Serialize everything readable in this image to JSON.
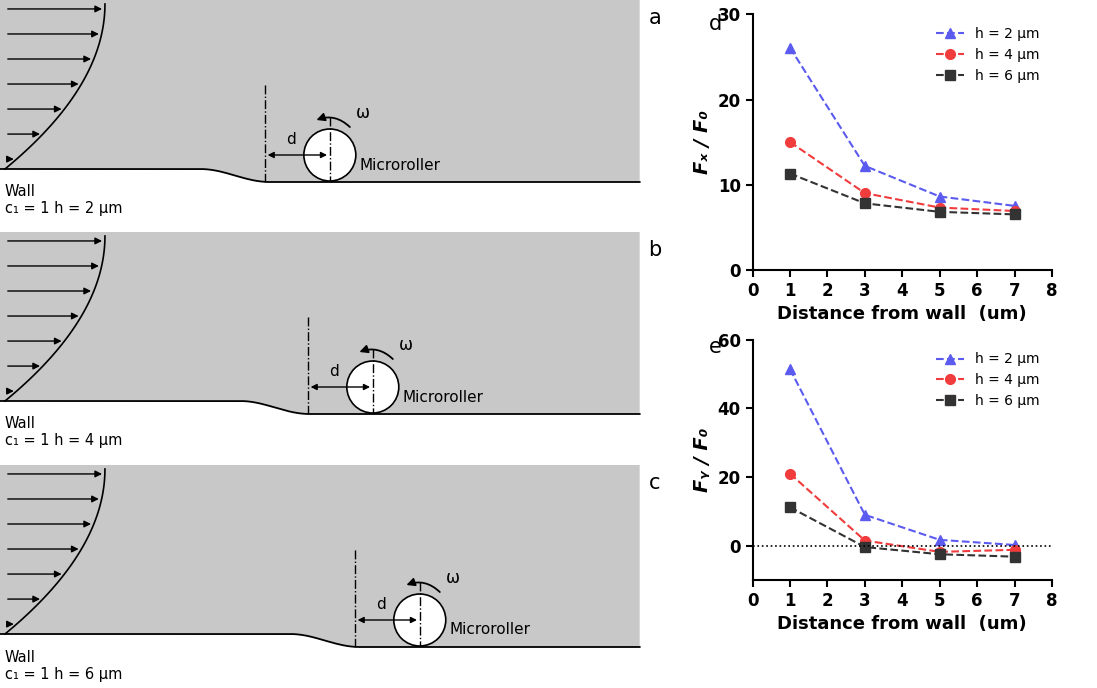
{
  "chart_data": [
    {
      "type": "line",
      "panel": "d",
      "y_label": "Fₓ / F₀",
      "x_label": "Distance from wall  (um)",
      "x": [
        1,
        3,
        5,
        7
      ],
      "series": [
        {
          "name": "h = 2 μm",
          "color": "#5b5bf0",
          "marker": "triangle",
          "line_style": "dashed",
          "values": [
            26.1,
            12.2,
            8.6,
            7.5
          ]
        },
        {
          "name": "h = 4 μm",
          "color": "#f03c3c",
          "marker": "circle",
          "line_style": "dashed",
          "values": [
            15.0,
            9.0,
            7.3,
            6.9
          ]
        },
        {
          "name": "h = 6 μm",
          "color": "#333333",
          "marker": "square",
          "line_style": "dashed",
          "values": [
            11.3,
            7.8,
            6.8,
            6.5
          ]
        }
      ],
      "xlim": [
        0,
        8
      ],
      "xticks": [
        0,
        1,
        2,
        3,
        4,
        5,
        6,
        7,
        8
      ],
      "ylim": [
        0,
        30
      ],
      "yticks": [
        0,
        10,
        20,
        30
      ],
      "legend": "upper right"
    },
    {
      "type": "line",
      "panel": "e",
      "y_label": "Fᵧ / F₀",
      "x_label": "Distance from wall  (um)",
      "x": [
        1,
        3,
        5,
        7
      ],
      "series": [
        {
          "name": "h = 2 μm",
          "color": "#5b5bf0",
          "marker": "triangle",
          "line_style": "dashed",
          "values": [
            51.5,
            9.0,
            1.7,
            0.2
          ]
        },
        {
          "name": "h = 4 μm",
          "color": "#f03c3c",
          "marker": "circle",
          "line_style": "dashed",
          "values": [
            21.0,
            1.5,
            -1.8,
            -1.2
          ]
        },
        {
          "name": "h = 6 μm",
          "color": "#333333",
          "marker": "square",
          "line_style": "dashed",
          "values": [
            11.2,
            -0.4,
            -2.5,
            -3.2
          ]
        }
      ],
      "zero_line": {
        "y": 0,
        "line_style": "dotted"
      },
      "xlim": [
        0,
        8
      ],
      "xticks": [
        0,
        1,
        2,
        3,
        4,
        5,
        6,
        7,
        8
      ],
      "ylim": [
        -10,
        60
      ],
      "yticks": [
        0,
        20,
        40,
        60
      ],
      "legend": "upper right"
    }
  ],
  "diagram": {
    "panels": [
      {
        "label": "a",
        "wall": "Wall",
        "caption": "c₁ = 1 h = 2 μm",
        "object": "Microroller",
        "distance": "d",
        "rotation": "ω"
      },
      {
        "label": "b",
        "wall": "Wall",
        "caption": "c₁ = 1 h = 4 μm",
        "object": "Microroller",
        "distance": "d",
        "rotation": "ω"
      },
      {
        "label": "c",
        "wall": "Wall",
        "caption": "c₁ = 1 h = 6 μm",
        "object": "Microroller",
        "distance": "d",
        "rotation": "ω"
      }
    ]
  }
}
